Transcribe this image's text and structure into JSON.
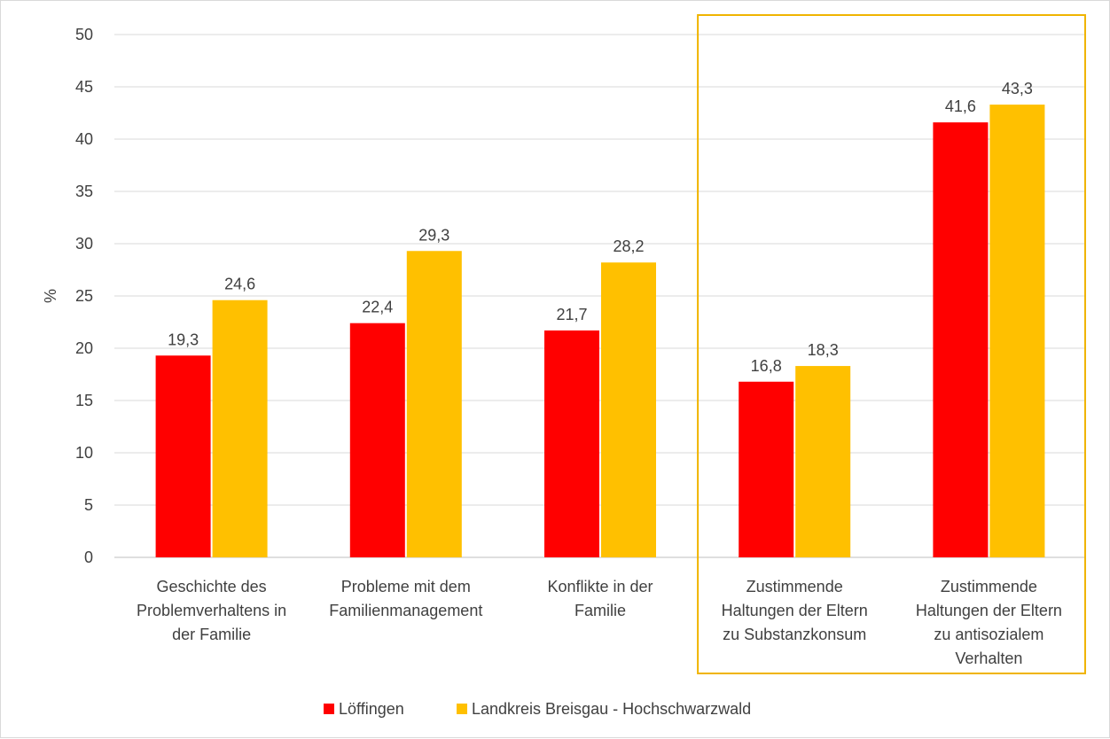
{
  "chart_data": {
    "type": "bar",
    "ylabel": "%",
    "ylim": [
      0,
      50
    ],
    "ytick_step": 5,
    "yticks": [
      "0",
      "5",
      "10",
      "15",
      "20",
      "25",
      "30",
      "35",
      "40",
      "45",
      "50"
    ],
    "grid": true,
    "legend_position": "bottom",
    "categories": [
      [
        "Geschichte des",
        "Problemverhaltens in",
        "der Familie"
      ],
      [
        "Probleme mit dem",
        "Familienmanagement"
      ],
      [
        "Konflikte in der",
        "Familie"
      ],
      [
        "Zustimmende",
        "Haltungen der Eltern",
        "zu Substanzkonsum"
      ],
      [
        "Zustimmende",
        "Haltungen der Eltern",
        "zu antisozialem",
        "Verhalten"
      ]
    ],
    "series": [
      {
        "name": "Löffingen",
        "color": "#ff0000",
        "values": [
          19.3,
          22.4,
          21.7,
          16.8,
          41.6
        ],
        "labels": [
          "19,3",
          "22,4",
          "21,7",
          "16,8",
          "41,6"
        ]
      },
      {
        "name": "Landkreis Breisgau - Hochschwarzwald",
        "color": "#ffc000",
        "values": [
          24.6,
          29.3,
          28.2,
          18.3,
          43.3
        ],
        "labels": [
          "24,6",
          "29,3",
          "28,2",
          "18,3",
          "43,3"
        ]
      }
    ],
    "highlight": {
      "categories": [
        3,
        4
      ],
      "color": "#f0b400"
    }
  }
}
